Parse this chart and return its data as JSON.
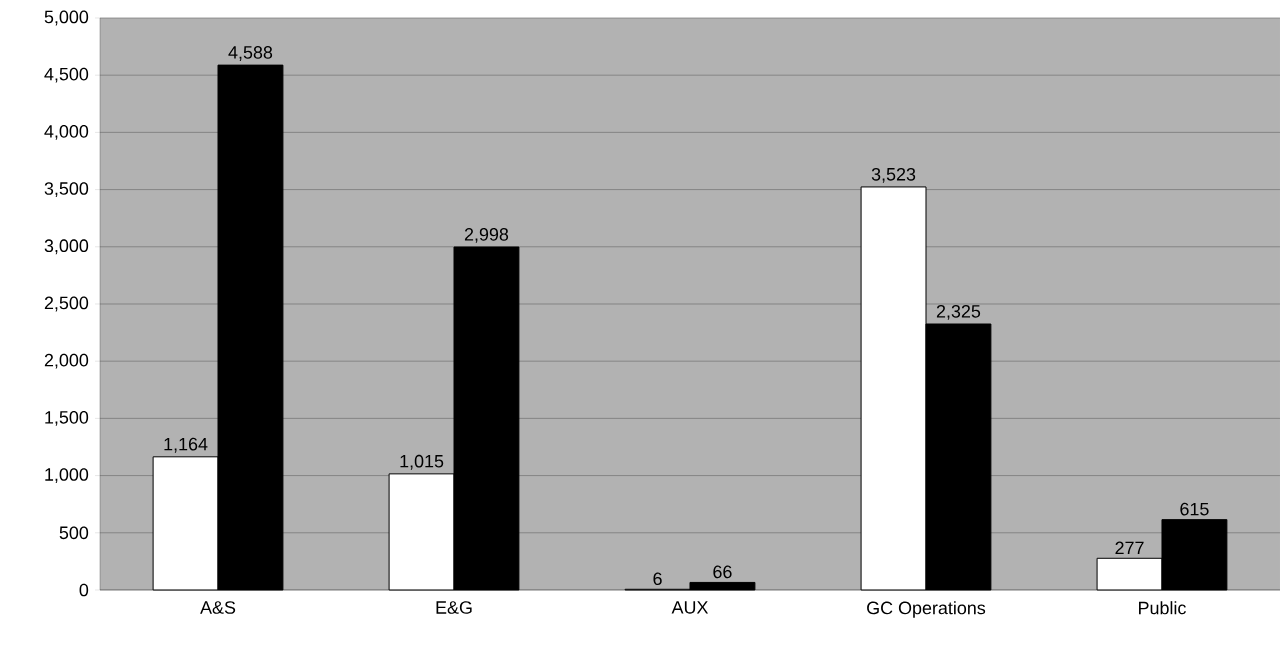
{
  "chart_data": {
    "type": "bar",
    "categories": [
      "A&S",
      "E&G",
      "AUX",
      "GC Operations",
      "Public"
    ],
    "series": [
      {
        "color": "#ffffff",
        "values": [
          1164,
          1015,
          6,
          3523,
          277
        ],
        "value_labels": [
          "1,164",
          "1,015",
          "6",
          "3,523",
          "277"
        ]
      },
      {
        "color": "#000000",
        "values": [
          4588,
          2998,
          66,
          2325,
          615
        ],
        "value_labels": [
          "4,588",
          "2,998",
          "66",
          "2,325",
          "615"
        ]
      }
    ],
    "ylim": [
      0,
      5000
    ],
    "yticks": [
      0,
      500,
      {
        "value": 1000,
        "label": "1,000"
      },
      {
        "value": 1500,
        "label": "1,500"
      },
      {
        "value": 2000,
        "label": "2,000"
      },
      {
        "value": 2500,
        "label": "2,500"
      },
      {
        "value": 3000,
        "label": "3,000"
      },
      {
        "value": 3500,
        "label": "3,500"
      },
      {
        "value": 4000,
        "label": "4,000"
      },
      {
        "value": 4500,
        "label": "4,500"
      },
      {
        "value": 5000,
        "label": "5,000"
      }
    ],
    "grid": "y"
  }
}
